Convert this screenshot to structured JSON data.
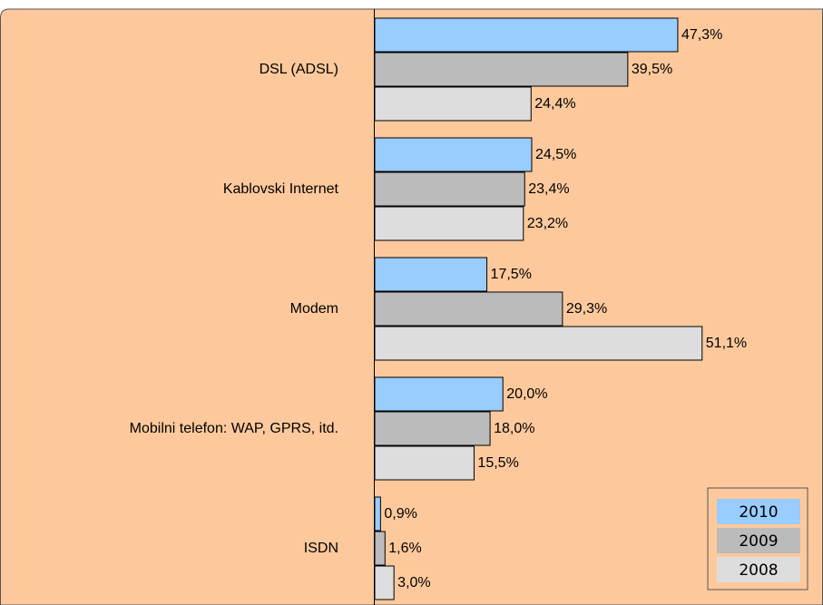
{
  "chart_data": {
    "type": "bar",
    "orientation": "horizontal",
    "categories": [
      "DSL (ADSL)",
      "Kablovski Internet",
      "Modem",
      "Mobilni telefon: WAP, GPRS, itd.",
      "ISDN"
    ],
    "series": [
      {
        "name": "2010",
        "color": "#99ccff",
        "values": [
          47.3,
          24.5,
          17.5,
          20.0,
          0.9
        ],
        "value_labels": [
          "47,3%",
          "24,5%",
          "17,5%",
          "20,0%",
          "0,9%"
        ]
      },
      {
        "name": "2009",
        "color": "#bbbbbb",
        "values": [
          39.5,
          23.4,
          29.3,
          18.0,
          1.6
        ],
        "value_labels": [
          "39,5%",
          "23,4%",
          "29,3%",
          "18,0%",
          "1,6%"
        ]
      },
      {
        "name": "2008",
        "color": "#dddddd",
        "values": [
          24.4,
          23.2,
          51.1,
          15.5,
          3.0
        ],
        "value_labels": [
          "24,4%",
          "23,2%",
          "51,1%",
          "15,5%",
          "3,0%"
        ]
      }
    ],
    "legend": "bottom-right"
  }
}
